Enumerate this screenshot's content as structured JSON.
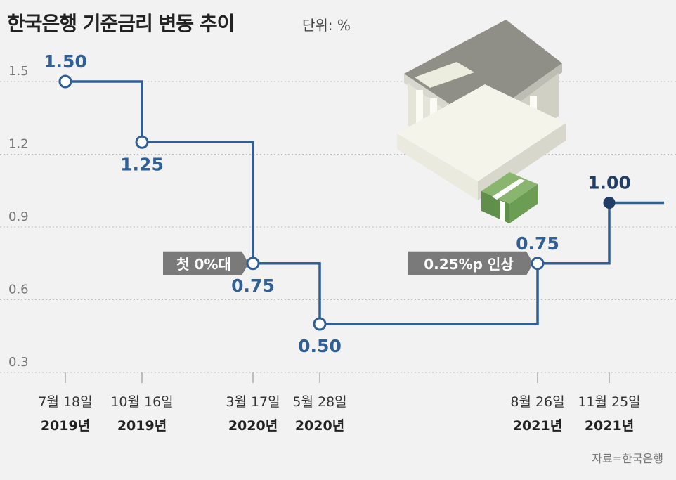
{
  "title": "한국은행 기준금리 변동 추이",
  "unit": "단위: %",
  "source": "자료=한국은행",
  "annotations": [
    {
      "text": "첫 0%대",
      "at_point": 2
    },
    {
      "text": "0.25%p 인상",
      "at_point": 4
    }
  ],
  "colors": {
    "line": "#2f5f95",
    "label": "#2f5f95",
    "last_label": "#1f3f66",
    "annotation_bg": "#7a7a7a",
    "grid": "#bdbdbd",
    "background": "#f2f2f2"
  },
  "chart_data": {
    "type": "line",
    "step": true,
    "grid": true,
    "ylim": [
      0.3,
      1.5
    ],
    "yticks": [
      "1.5",
      "1.2",
      "0.9",
      "0.6",
      "0.3"
    ],
    "series": [
      {
        "values": [
          1.5,
          1.25,
          0.75,
          0.5,
          0.75,
          1.0
        ],
        "labels": [
          "1.50",
          "1.25",
          "0.75",
          "0.50",
          "0.75",
          "1.00"
        ],
        "dates": [
          "7월 18일",
          "10월 16일",
          "3월 17일",
          "5월 28일",
          "8월 26일",
          "11월 25일"
        ],
        "years": [
          "2019년",
          "2019년",
          "2020년",
          "2020년",
          "2021년",
          "2021년"
        ]
      }
    ]
  }
}
